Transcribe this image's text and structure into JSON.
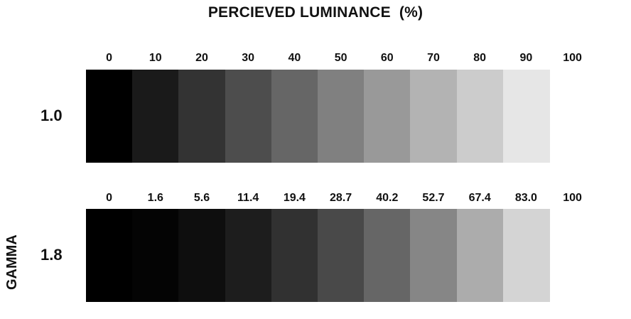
{
  "title": "PERCIEVED LUMINANCE  (%)",
  "axis_label": "GAMMA",
  "rows": [
    {
      "gamma": "1.0",
      "ticks": [
        "0",
        "10",
        "20",
        "30",
        "40",
        "50",
        "60",
        "70",
        "80",
        "90",
        "100"
      ],
      "swatch_colors": [
        "#000000",
        "#1a1a1a",
        "#333333",
        "#4d4d4d",
        "#666666",
        "#808080",
        "#999999",
        "#b3b3b3",
        "#cccccc",
        "#e6e6e6"
      ]
    },
    {
      "gamma": "1.8",
      "ticks": [
        "0",
        "1.6",
        "5.6",
        "11.4",
        "19.4",
        "28.7",
        "40.2",
        "52.7",
        "67.4",
        "83.0",
        "100"
      ],
      "swatch_colors": [
        "#000000",
        "#040404",
        "#0e0e0e",
        "#1d1d1d",
        "#313131",
        "#494949",
        "#666666",
        "#868686",
        "#acacac",
        "#d4d4d4"
      ]
    }
  ]
}
